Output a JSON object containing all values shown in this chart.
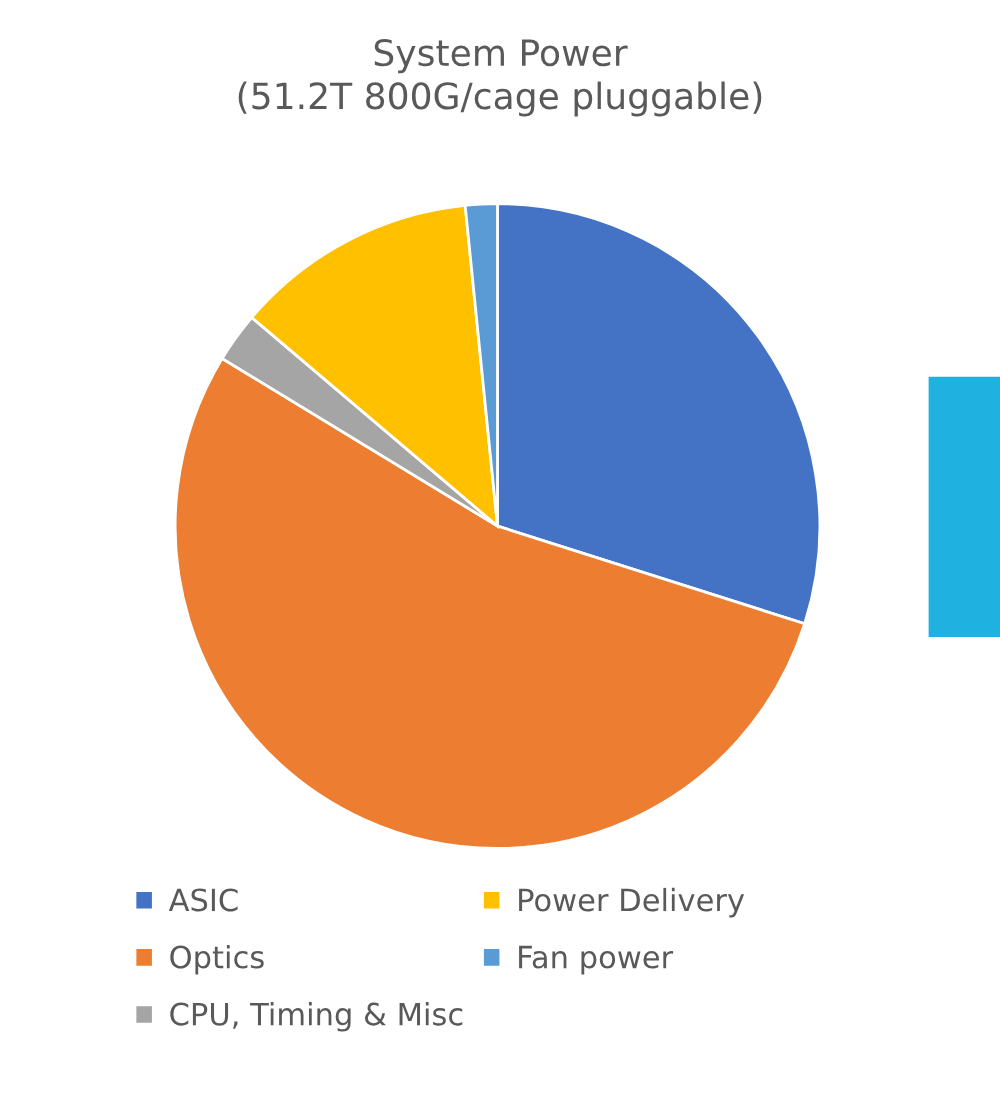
{
  "chart_data": {
    "type": "pie",
    "title": "System Power\n(51.2T 800G/cage pluggable)",
    "categories": [
      "ASIC",
      "Optics",
      "CPU, Timing & Misc",
      "Power Delivery",
      "Fan power"
    ],
    "values": [
      29.9,
      53.8,
      2.5,
      12.2,
      1.6
    ],
    "colors": [
      "#4472c4",
      "#ed7d31",
      "#a5a5a5",
      "#ffc000",
      "#5b9bd5"
    ],
    "legend": "bottom"
  }
}
